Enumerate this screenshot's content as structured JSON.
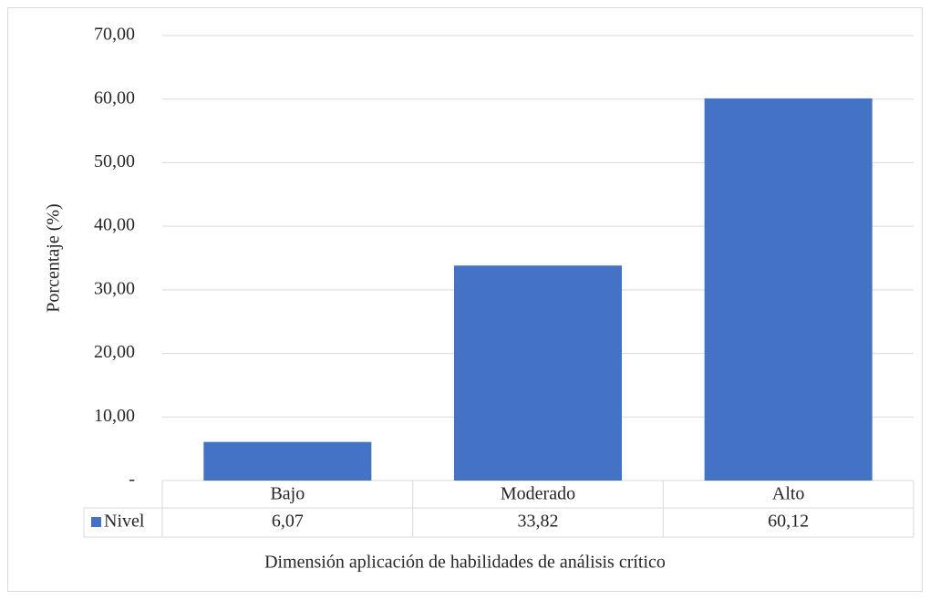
{
  "chart_data": {
    "type": "bar",
    "x_label": "Dimensión aplicación de habilidades de análisis crítico",
    "y_label": "Porcentaje (%)",
    "categories": [
      "Bajo",
      "Moderado",
      "Alto"
    ],
    "series": [
      {
        "name": "Nivel",
        "color": "#4472c4",
        "values": [
          6.07,
          33.82,
          60.12
        ],
        "value_labels": [
          "6,07",
          "33,82",
          "60,12"
        ]
      }
    ],
    "ylim": [
      0,
      70
    ],
    "yticks": [
      {
        "value": 0,
        "label": "-"
      },
      {
        "value": 10,
        "label": "10,00"
      },
      {
        "value": 20,
        "label": "20,00"
      },
      {
        "value": 30,
        "label": "30,00"
      },
      {
        "value": 40,
        "label": "40,00"
      },
      {
        "value": 50,
        "label": "50,00"
      },
      {
        "value": 60,
        "label": "60,00"
      },
      {
        "value": 70,
        "label": "70,00"
      }
    ],
    "grid": true,
    "data_table": true
  }
}
